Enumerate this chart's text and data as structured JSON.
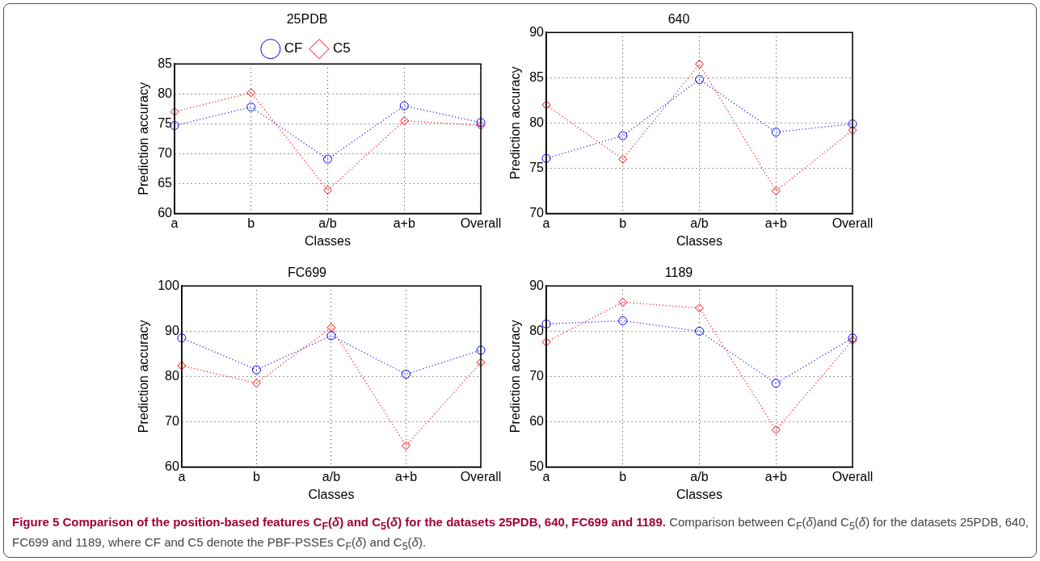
{
  "chart_data": [
    {
      "type": "line",
      "title": "25PDB",
      "xlabel": "Classes",
      "ylabel": "Prediction accuracy",
      "categories": [
        "a",
        "b",
        "a/b",
        "a+b",
        "Overall"
      ],
      "ylim": [
        60,
        85
      ],
      "yticks": [
        60,
        65,
        70,
        75,
        80,
        85
      ],
      "grid": true,
      "legend": "top",
      "line_style": "dotted",
      "series": [
        {
          "name": "CF",
          "color": "#0000ff",
          "marker": "circle",
          "values": [
            74.7,
            77.8,
            69.1,
            78.0,
            75.2
          ]
        },
        {
          "name": "C5",
          "color": "#ff0000",
          "marker": "diamond",
          "values": [
            77.0,
            80.2,
            63.9,
            75.5,
            74.7
          ]
        }
      ],
      "annotations": [
        "Figure 5 Comparison of the position-based features C$_{F}$(δ) and C$_{5}$(δ) for the datasets 25PDB, 640, FC699 and 1189.",
        "Comparison between C$_{F}$(δ)and C$_{5}$(δ) for the datasets 25PDB, 640, FC699 and 1189, where CF and C5 denote the PBF-PSSEs C$_{F}$(δ) and C$_{5}$(δ)."
      ]
    },
    {
      "type": "line",
      "title": "640",
      "xlabel": "Classes",
      "ylabel": "Prediction accuracy",
      "categories": [
        "a",
        "b",
        "a/b",
        "a+b",
        "Overall"
      ],
      "ylim": [
        70,
        90
      ],
      "yticks": [
        70,
        75,
        80,
        85,
        90
      ],
      "grid": true,
      "line_style": "dotted",
      "series": [
        {
          "color": "#0000ff",
          "marker": "circle",
          "values": [
            76.1,
            78.6,
            84.8,
            79.0,
            79.9
          ]
        },
        {
          "color": "#ff0000",
          "marker": "diamond",
          "values": [
            82.0,
            76.0,
            86.5,
            72.5,
            79.2
          ]
        }
      ]
    },
    {
      "type": "line",
      "title": "FC699",
      "xlabel": "Classes",
      "ylabel": "Prediction accuracy",
      "categories": [
        "a",
        "b",
        "a/b",
        "a+b",
        "Overall"
      ],
      "ylim": [
        60,
        100
      ],
      "yticks": [
        60,
        70,
        80,
        90,
        100
      ],
      "grid": true,
      "line_style": "dotted",
      "series": [
        {
          "color": "#0000ff",
          "marker": "circle",
          "values": [
            88.5,
            81.5,
            89.0,
            80.5,
            85.8
          ]
        },
        {
          "color": "#ff0000",
          "marker": "diamond",
          "values": [
            82.4,
            78.5,
            90.8,
            64.7,
            83.1
          ]
        }
      ]
    },
    {
      "type": "line",
      "title": "1189",
      "xlabel": "Classes",
      "ylabel": "Prediction accuracy",
      "categories": [
        "a",
        "b",
        "a/b",
        "a+b",
        "Overall"
      ],
      "ylim": [
        50,
        90
      ],
      "yticks": [
        50,
        60,
        70,
        80,
        90
      ],
      "grid": true,
      "line_style": "dotted",
      "series": [
        {
          "color": "#0000ff",
          "marker": "circle",
          "values": [
            81.6,
            82.3,
            80.0,
            68.5,
            78.5
          ]
        },
        {
          "color": "#ff0000",
          "marker": "diamond",
          "values": [
            77.6,
            86.4,
            85.1,
            58.2,
            78.0
          ]
        }
      ]
    }
  ]
}
